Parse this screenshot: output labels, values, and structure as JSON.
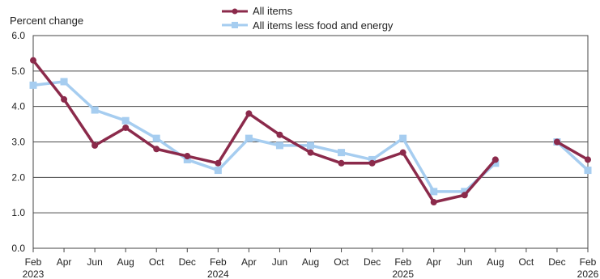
{
  "chart_data": {
    "type": "line",
    "ylabel": "Percent change",
    "ylim": [
      0,
      6
    ],
    "yticks": [
      "0.0",
      "1.0",
      "2.0",
      "3.0",
      "4.0",
      "5.0",
      "6.0"
    ],
    "grid": true,
    "legend_position": "top-center",
    "x": [
      "2023-02",
      "2023-04",
      "2023-06",
      "2023-08",
      "2023-10",
      "2023-12",
      "2024-02",
      "2024-04",
      "2024-06",
      "2024-08",
      "2024-10",
      "2024-12",
      "2025-02",
      "2025-04",
      "2025-06",
      "2025-08",
      "2025-10",
      "2025-12",
      "2026-02"
    ],
    "xtick_labels": [
      "Feb",
      "Apr",
      "Jun",
      "Aug",
      "Oct",
      "Dec",
      "Feb",
      "Apr",
      "Jun",
      "Aug",
      "Oct",
      "Dec",
      "Feb",
      "Apr",
      "Jun",
      "Aug",
      "Oct",
      "Dec",
      "Feb"
    ],
    "xtick_year_labels": [
      "2023",
      "",
      "",
      "",
      "",
      "",
      "2024",
      "",
      "",
      "",
      "",
      "",
      "2025",
      "",
      "",
      "",
      "",
      "",
      "2026"
    ],
    "series": [
      {
        "name": "All items",
        "color": "#8b2a4b",
        "marker": "circle",
        "values": [
          5.3,
          4.2,
          2.9,
          3.4,
          2.8,
          2.6,
          2.4,
          3.8,
          3.2,
          2.7,
          2.4,
          2.4,
          2.7,
          1.3,
          1.5,
          2.5,
          null,
          3.0,
          2.5
        ]
      },
      {
        "name": "All items less food and energy",
        "color": "#a6cdf0",
        "marker": "square",
        "values": [
          4.6,
          4.7,
          3.9,
          3.6,
          3.1,
          2.5,
          2.2,
          3.1,
          2.9,
          2.9,
          2.7,
          2.5,
          3.1,
          1.6,
          1.6,
          2.4,
          null,
          3.0,
          2.2
        ]
      }
    ]
  }
}
